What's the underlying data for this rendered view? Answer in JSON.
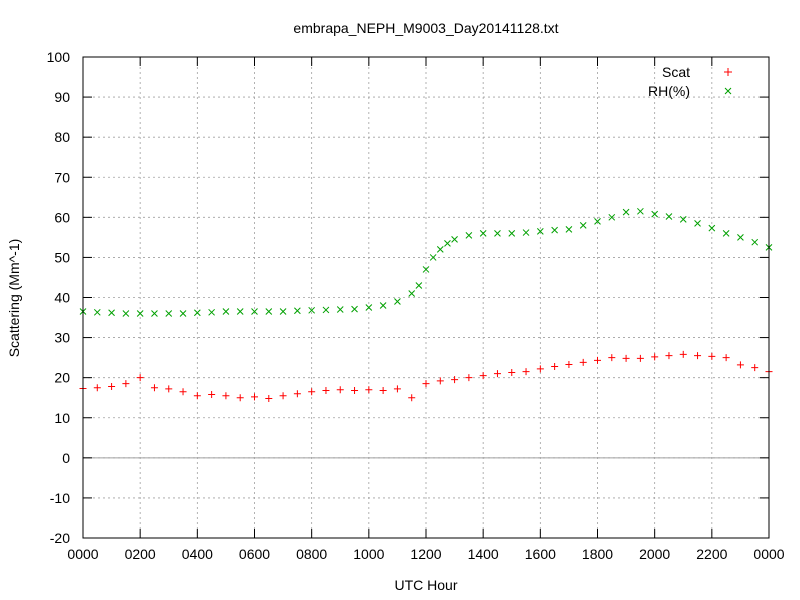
{
  "chart_data": {
    "type": "scatter",
    "title": "embrapa_NEPH_M9003_Day20141128.txt",
    "xlabel": "UTC Hour",
    "ylabel": "Scattering (Mm^-1)",
    "xlim": [
      0,
      24
    ],
    "ylim": [
      -20,
      100
    ],
    "grid": true,
    "legend_position": "top-right",
    "x_ticks": [
      0,
      2,
      4,
      6,
      8,
      10,
      12,
      14,
      16,
      18,
      20,
      22,
      24
    ],
    "x_tick_labels": [
      "0000",
      "0200",
      "0400",
      "0600",
      "0800",
      "1000",
      "1200",
      "1400",
      "1600",
      "1800",
      "2000",
      "2200",
      "0000"
    ],
    "y_ticks": [
      -20,
      -10,
      0,
      10,
      20,
      30,
      40,
      50,
      60,
      70,
      80,
      90,
      100
    ],
    "y_tick_labels": [
      "-20",
      "-10",
      "0",
      "10",
      "20",
      "30",
      "40",
      "50",
      "60",
      "70",
      "80",
      "90",
      "100"
    ],
    "zero_line": true,
    "series": [
      {
        "name": "Scat",
        "marker": "plus",
        "color": "#ff0000",
        "x": [
          0,
          0.5,
          1,
          1.5,
          2,
          2.5,
          3,
          3.5,
          4,
          4.5,
          5,
          5.5,
          6,
          6.5,
          7,
          7.5,
          8,
          8.5,
          9,
          9.5,
          10,
          10.5,
          11,
          11.5,
          12,
          12.5,
          13,
          13.5,
          14,
          14.5,
          15,
          15.5,
          16,
          16.5,
          17,
          17.5,
          18,
          18.5,
          19,
          19.5,
          20,
          20.5,
          21,
          21.5,
          22,
          22.5,
          23,
          23.5,
          24
        ],
        "y": [
          17.3,
          17.5,
          17.8,
          18.5,
          20,
          17.5,
          17.2,
          16.5,
          15.5,
          15.8,
          15.5,
          15,
          15.2,
          14.8,
          15.5,
          16,
          16.5,
          16.8,
          17,
          16.8,
          17,
          16.8,
          17.2,
          15,
          18.5,
          19.2,
          19.5,
          20,
          20.5,
          21,
          21.3,
          21.5,
          22.2,
          22.8,
          23.3,
          23.8,
          24.3,
          25,
          24.8,
          24.8,
          25.2,
          25.5,
          25.8,
          25.5,
          25.3,
          25,
          23.2,
          22.5,
          21.5
        ]
      },
      {
        "name": "RH(%)",
        "marker": "cross",
        "color": "#00a000",
        "x": [
          0,
          0.5,
          1,
          1.5,
          2,
          2.5,
          3,
          3.5,
          4,
          4.5,
          5,
          5.5,
          6,
          6.5,
          7,
          7.5,
          8,
          8.5,
          9,
          9.5,
          10,
          10.5,
          11,
          11.5,
          11.75,
          12,
          12.25,
          12.5,
          12.75,
          13,
          13.5,
          14,
          14.5,
          15,
          15.5,
          16,
          16.5,
          17,
          17.5,
          18,
          18.5,
          19,
          19.5,
          20,
          20.5,
          21,
          21.5,
          22,
          22.5,
          23,
          23.5,
          24
        ],
        "y": [
          36.5,
          36.3,
          36.2,
          36,
          36,
          36,
          36,
          36,
          36.2,
          36.3,
          36.5,
          36.5,
          36.5,
          36.5,
          36.5,
          36.7,
          36.8,
          36.9,
          37,
          37.1,
          37.5,
          38,
          39,
          41,
          43,
          47,
          50,
          52,
          53.5,
          54.5,
          55.5,
          56,
          56,
          56,
          56.2,
          56.5,
          56.8,
          57,
          58,
          59,
          60,
          61.3,
          61.5,
          60.8,
          60.2,
          59.5,
          58.5,
          57.3,
          56,
          55,
          53.8,
          52.5
        ]
      }
    ]
  }
}
